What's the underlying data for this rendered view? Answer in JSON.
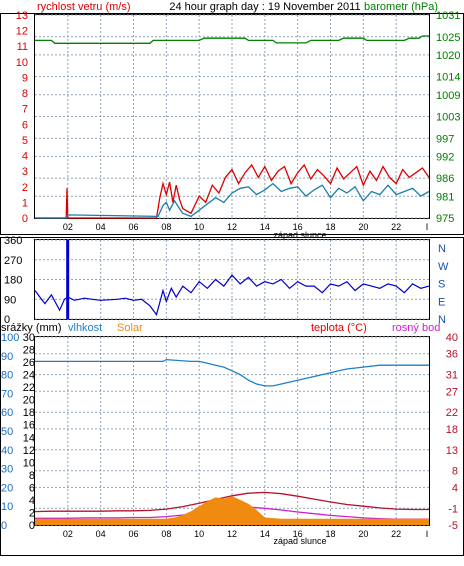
{
  "colors": {
    "wind": "#dd0000",
    "gust": "#1a7fa8",
    "baro": "#008000",
    "dir": "#0000cc",
    "humidity": "#1f7fc6",
    "solar": "#f08a10",
    "temp": "#b8102a",
    "dew": "#cc22cc",
    "rain_axis": "#1a6fc4",
    "night": "#ffffff",
    "grid": "#8fa4b8"
  },
  "header": {
    "left": "rychlost vetru (m/s)",
    "center": "24 hour graph day : 19 November 2011",
    "right": "barometr (hPa)"
  },
  "sunset_label": "západ slunce",
  "x_ticks": [
    "02",
    "04",
    "06",
    "08",
    "10",
    "12",
    "14",
    "16",
    "18",
    "20",
    "22"
  ],
  "legend3": {
    "rain": "srážky (mm)",
    "humidity": "vlhkost",
    "solar": "Solar",
    "temp": "teplota (°C)",
    "dew": "rosný bod"
  },
  "chart_data": [
    {
      "type": "line",
      "title": "24 hour graph day : 19 November 2011",
      "x_unit": "hour",
      "xlim": [
        0,
        24
      ],
      "left_axis": {
        "label": "rychlost vetru (m/s)",
        "ylim": [
          0,
          13
        ],
        "ticks": [
          0,
          1,
          2,
          3,
          4,
          5,
          6,
          7,
          8,
          9,
          10,
          11,
          12,
          13
        ]
      },
      "right_axis": {
        "label": "barometr (hPa)",
        "ylim": [
          975,
          1031
        ],
        "ticks": [
          975,
          981,
          986,
          992,
          997,
          1003,
          1009,
          1014,
          1020,
          1025,
          1031
        ]
      },
      "series": [
        {
          "name": "rychlost vetru",
          "axis": "left",
          "x": [
            0,
            1.9,
            1.95,
            2.0,
            7.4,
            7.6,
            7.8,
            8.0,
            8.2,
            8.4,
            8.6,
            8.8,
            9.0,
            9.5,
            10.0,
            10.4,
            10.8,
            11.2,
            11.6,
            12.0,
            12.4,
            12.8,
            13.2,
            13.6,
            14.0,
            14.4,
            14.8,
            15.2,
            15.6,
            16.0,
            16.4,
            16.8,
            17.2,
            17.6,
            18.0,
            18.4,
            18.8,
            19.2,
            19.6,
            20.0,
            20.4,
            20.8,
            21.2,
            21.6,
            22.0,
            22.4,
            22.8,
            23.2,
            23.6,
            24.0
          ],
          "y": [
            0,
            0,
            1.9,
            0,
            0,
            1.3,
            2.2,
            1.5,
            2.3,
            1.0,
            2.1,
            1.2,
            0.6,
            0.3,
            1.4,
            1.0,
            2.1,
            1.6,
            2.6,
            3.1,
            2.2,
            2.9,
            3.4,
            2.6,
            3.3,
            2.4,
            3.0,
            3.3,
            2.2,
            2.9,
            3.4,
            2.5,
            3.1,
            2.7,
            2.2,
            3.2,
            2.5,
            2.9,
            3.3,
            2.1,
            3.0,
            2.4,
            3.3,
            2.6,
            2.2,
            3.1,
            2.6,
            2.9,
            3.2,
            2.6
          ]
        },
        {
          "name": "",
          "axis": "left",
          "x": [
            0,
            1.9,
            2.0,
            7.5,
            7.8,
            8.0,
            8.2,
            8.5,
            8.8,
            9.0,
            9.5,
            10.0,
            10.5,
            11.0,
            11.5,
            12.0,
            12.5,
            13.0,
            13.5,
            14.0,
            14.5,
            15.0,
            15.5,
            16.0,
            16.5,
            17.0,
            17.5,
            18.0,
            18.5,
            19.0,
            19.5,
            20.0,
            20.5,
            21.0,
            21.5,
            22.0,
            22.5,
            23.0,
            23.5,
            24.0
          ],
          "y": [
            0,
            0,
            0.2,
            0.1,
            0.8,
            1.0,
            0.5,
            1.1,
            0.6,
            0.3,
            0.1,
            0.5,
            0.9,
            1.3,
            1.0,
            1.6,
            1.9,
            2.0,
            1.5,
            1.8,
            2.2,
            1.7,
            1.9,
            2.0,
            1.4,
            1.8,
            2.1,
            1.3,
            1.9,
            1.6,
            2.0,
            1.1,
            1.7,
            1.5,
            2.1,
            1.5,
            1.7,
            1.9,
            1.4,
            1.7
          ]
        },
        {
          "name": "barometr",
          "axis": "right",
          "x": [
            0,
            1.0,
            1.2,
            7.0,
            7.2,
            10.0,
            10.3,
            12.8,
            13.0,
            14.5,
            14.7,
            16.5,
            16.8,
            18.5,
            18.8,
            20.0,
            20.2,
            22.5,
            22.8,
            23.4,
            23.6,
            24.0
          ],
          "y": [
            1024.0,
            1024.0,
            1023.2,
            1023.2,
            1024.0,
            1024.0,
            1024.6,
            1024.6,
            1024.0,
            1024.0,
            1023.3,
            1023.3,
            1024.0,
            1024.0,
            1024.6,
            1024.6,
            1024.0,
            1024.0,
            1024.6,
            1024.6,
            1025.2,
            1025.2
          ]
        }
      ]
    },
    {
      "type": "line",
      "x_unit": "hour",
      "xlim": [
        0,
        24
      ],
      "ylim": [
        0,
        360
      ],
      "y_ticks": [
        0,
        90,
        180,
        270,
        360
      ],
      "right_labels": [
        "N",
        "W",
        "S",
        "E",
        "N"
      ],
      "series": [
        {
          "name": "",
          "x": [
            0,
            0.3,
            0.6,
            1.0,
            1.5,
            1.8,
            2.0,
            2.4,
            3.0,
            3.5,
            4.0,
            5.0,
            5.5,
            6.0,
            6.5,
            7.0,
            7.4,
            7.8,
            8.0,
            8.3,
            8.6,
            9.0,
            9.5,
            10.0,
            10.5,
            11.0,
            11.5,
            12.0,
            12.5,
            13.0,
            13.5,
            14.0,
            14.5,
            15.0,
            15.5,
            16.0,
            16.5,
            17.0,
            17.5,
            18.0,
            18.5,
            19.0,
            19.5,
            20.0,
            20.5,
            21.0,
            21.5,
            22.0,
            22.5,
            23.0,
            23.5,
            24.0
          ],
          "y": [
            130,
            100,
            70,
            110,
            40,
            90,
            100,
            85,
            95,
            90,
            85,
            90,
            95,
            85,
            90,
            60,
            20,
            130,
            80,
            140,
            100,
            150,
            120,
            170,
            140,
            180,
            150,
            200,
            160,
            190,
            150,
            170,
            160,
            180,
            140,
            170,
            150,
            150,
            120,
            160,
            150,
            170,
            130,
            160,
            150,
            140,
            160,
            150,
            120,
            160,
            140,
            150
          ]
        },
        {
          "name": "",
          "type": "bar",
          "x": [
            1.9,
            2.0
          ],
          "y": [
            360,
            360
          ]
        }
      ]
    },
    {
      "type": "line",
      "x_unit": "hour",
      "xlim": [
        0,
        24
      ],
      "axes": {
        "rain": {
          "label": "srážky (mm)",
          "ylim": [
            0,
            30
          ],
          "ticks": [
            0,
            2,
            4,
            6,
            8,
            10,
            12,
            14,
            16,
            18,
            20,
            22,
            24,
            26,
            28,
            30
          ]
        },
        "humidity": {
          "label": "vlhkost",
          "ylim": [
            0,
            100
          ],
          "ticks": [
            0,
            10,
            20,
            30,
            40,
            50,
            60,
            70,
            80,
            90,
            100
          ]
        },
        "temperature": {
          "label": "teplota (°C)",
          "ylim": [
            -5,
            40
          ],
          "ticks": [
            -5,
            -1,
            4,
            8,
            13,
            18,
            22,
            27,
            31,
            36,
            40
          ]
        }
      },
      "series": [
        {
          "name": "vlhkost",
          "axis": "humidity",
          "x": [
            0,
            7,
            7.8,
            8.0,
            9.5,
            10.0,
            10.5,
            11.0,
            11.5,
            12.0,
            12.5,
            13.0,
            13.5,
            14.0,
            14.5,
            15.0,
            15.5,
            16.0,
            16.5,
            17.0,
            17.5,
            18.0,
            18.5,
            19.0,
            20.0,
            21.0,
            22.0,
            23.0,
            24.0
          ],
          "y": [
            87,
            87,
            87,
            88,
            87,
            87,
            86,
            85,
            84,
            82,
            80,
            77,
            75,
            74,
            74,
            75,
            76,
            77,
            78,
            79,
            80,
            81,
            82,
            83,
            84,
            85,
            85,
            85,
            85
          ]
        },
        {
          "name": "teplota (°C)",
          "axis": "temperature",
          "x": [
            0,
            1,
            2,
            3,
            4,
            5,
            6,
            7,
            8,
            9,
            10,
            11,
            12,
            13,
            14,
            15,
            16,
            17,
            18,
            19,
            20,
            21,
            22,
            23,
            24
          ],
          "y": [
            -1.8,
            -1.7,
            -1.7,
            -1.7,
            -1.7,
            -1.6,
            -1.6,
            -1.5,
            -1.2,
            -0.6,
            0.2,
            1.1,
            2.0,
            2.6,
            2.8,
            2.5,
            1.9,
            1.2,
            0.5,
            -0.1,
            -0.5,
            -0.9,
            -1.2,
            -1.3,
            -1.3
          ]
        },
        {
          "name": "rosný bod",
          "axis": "temperature",
          "x": [
            0,
            1,
            2,
            3,
            4,
            5,
            6,
            7,
            8,
            9,
            10,
            11,
            12,
            13,
            14,
            15,
            16,
            17,
            18,
            19,
            20,
            21,
            22,
            23,
            24
          ],
          "y": [
            -3.4,
            -3.4,
            -3.4,
            -3.3,
            -3.3,
            -3.3,
            -3.2,
            -3.2,
            -3.0,
            -2.6,
            -2.0,
            -1.4,
            -0.8,
            -0.7,
            -1.0,
            -1.4,
            -1.9,
            -2.3,
            -2.7,
            -3.0,
            -3.3,
            -3.5,
            -3.6,
            -3.6,
            -3.6
          ]
        },
        {
          "name": "Solar",
          "type": "area",
          "axis": "rain",
          "x": [
            0,
            7,
            8,
            8.5,
            9,
            9.5,
            10,
            10.5,
            11,
            11.5,
            12,
            12.5,
            13,
            13.5,
            14,
            15,
            24
          ],
          "y": [
            1,
            1,
            1,
            1.2,
            1.6,
            2.2,
            3.0,
            3.8,
            4.4,
            4.2,
            4.6,
            4.0,
            3.4,
            2.4,
            1.2,
            1,
            1
          ]
        }
      ]
    }
  ]
}
